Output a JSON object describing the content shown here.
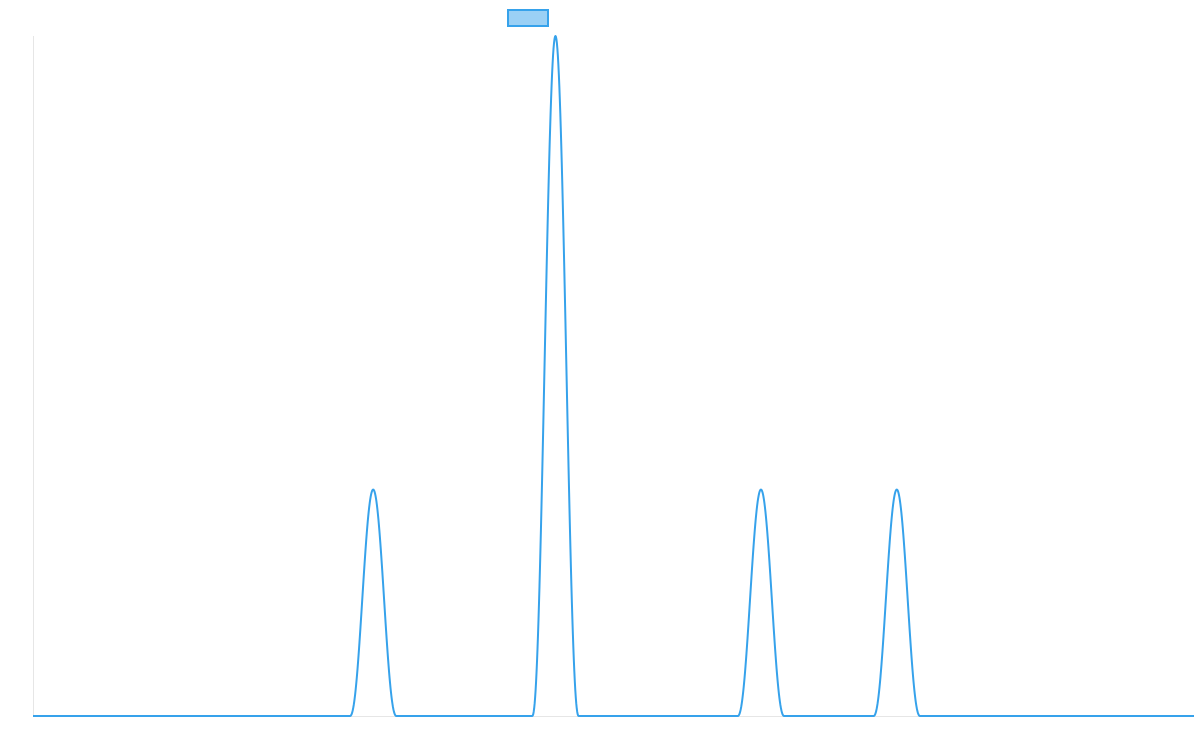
{
  "chart_data": {
    "type": "line",
    "title": "",
    "xlabel": "",
    "ylabel": "",
    "x_range": [
      0,
      100
    ],
    "y_range": [
      0,
      1
    ],
    "grid": false,
    "legend": {
      "placement": "top-center",
      "entries": [
        {
          "label": "",
          "color": "#36a2eb",
          "fill": "#9ad0f5"
        }
      ]
    },
    "series": [
      {
        "color": "#36a2eb",
        "baseline": 0,
        "peaks": [
          {
            "center": 29.3,
            "height": 0.333,
            "base_half_width": 2.0
          },
          {
            "center": 45.0,
            "height": 1.0,
            "base_half_width": 2.0
          },
          {
            "center": 62.7,
            "height": 0.333,
            "base_half_width": 2.0
          },
          {
            "center": 74.4,
            "height": 0.333,
            "base_half_width": 2.0
          }
        ]
      }
    ]
  }
}
